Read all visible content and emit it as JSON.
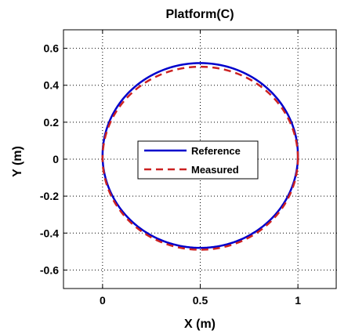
{
  "chart_data": {
    "type": "line",
    "title": "Platform(C)",
    "xlabel": "X (m)",
    "ylabel": "Y (m)",
    "xlim": [
      -0.2,
      1.2
    ],
    "ylim": [
      -0.7,
      0.7
    ],
    "xticks": [
      0,
      0.5,
      1
    ],
    "xtick_labels": [
      "0",
      "0.5",
      "1"
    ],
    "yticks": [
      -0.6,
      -0.4,
      -0.2,
      0,
      0.2,
      0.4,
      0.6
    ],
    "ytick_labels": [
      "-0.6",
      "-0.4",
      "-0.2",
      "0",
      "0.2",
      "0.4",
      "0.6"
    ],
    "grid": true,
    "legend_position": "center",
    "series": [
      {
        "name": "Reference",
        "color": "#0000cc",
        "style": "solid",
        "shape": "circle",
        "center": [
          0.5,
          0.02
        ],
        "radius_x": 0.5,
        "radius_y": 0.5,
        "x": [
          1.0,
          0.933,
          0.75,
          0.5,
          0.25,
          0.067,
          0.0,
          0.067,
          0.25,
          0.5,
          0.75,
          0.933,
          1.0
        ],
        "y": [
          0.02,
          0.27,
          0.453,
          0.52,
          0.453,
          0.27,
          0.02,
          -0.23,
          -0.413,
          -0.48,
          -0.413,
          -0.23,
          0.02
        ]
      },
      {
        "name": "Measured",
        "color": "#cc2222",
        "style": "dashed",
        "shape": "ellipse",
        "center": [
          0.5,
          0.005
        ],
        "radius_x": 0.5,
        "radius_y": 0.495,
        "x": [
          1.0,
          0.933,
          0.75,
          0.5,
          0.25,
          0.067,
          0.0,
          0.067,
          0.25,
          0.5,
          0.75,
          0.933,
          1.0
        ],
        "y": [
          0.005,
          0.253,
          0.434,
          0.5,
          0.434,
          0.253,
          0.005,
          -0.243,
          -0.424,
          -0.49,
          -0.424,
          -0.243,
          0.005
        ]
      }
    ]
  }
}
